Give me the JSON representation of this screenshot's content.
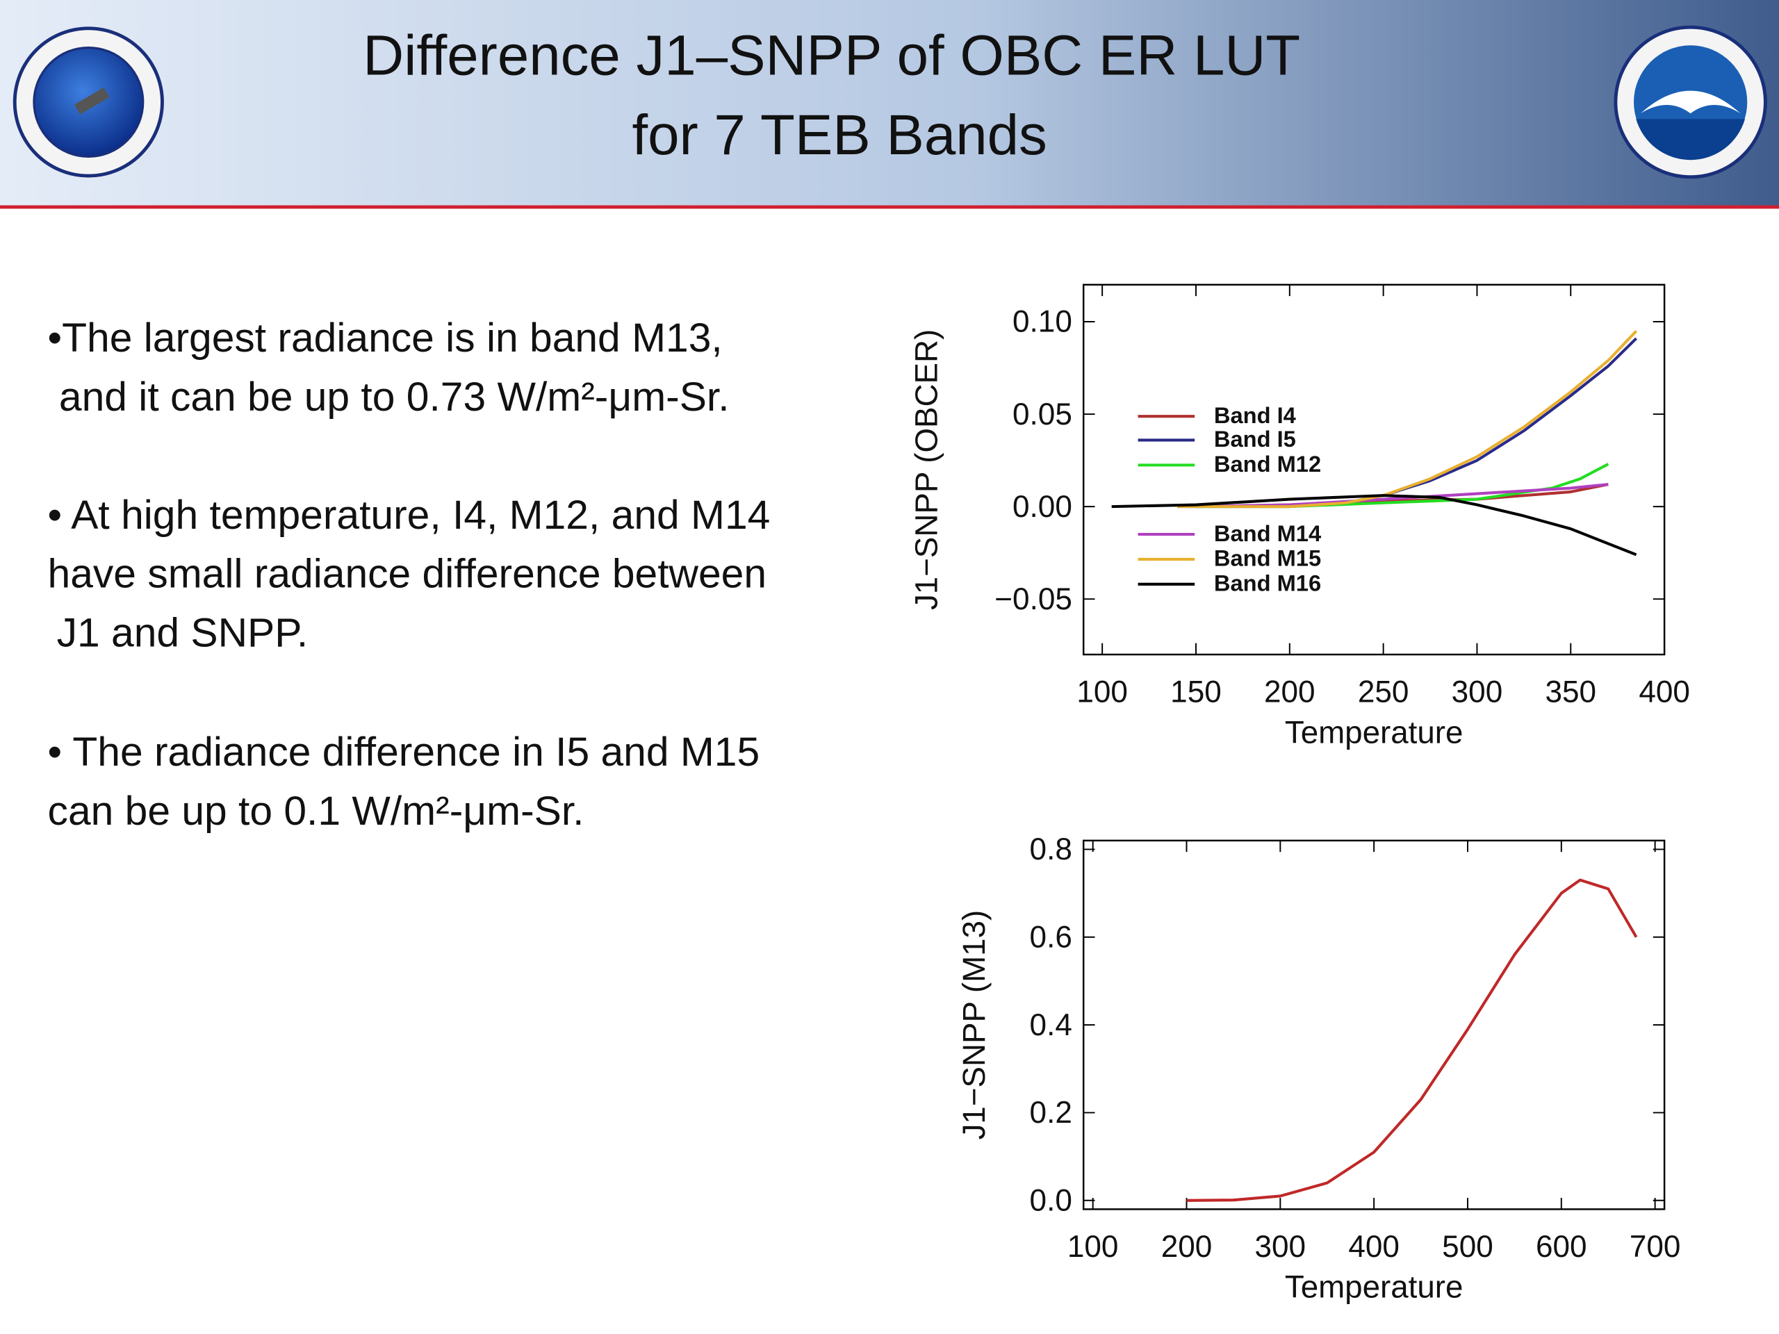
{
  "header": {
    "title_lines": [
      "Difference J1–SNPP of OBC ER LUT",
      "for 7 TEB Bands"
    ]
  },
  "bullets": [
    [
      "•The largest radiance is in band M13,",
      "and it can be up to 0.73 W/m²-μm-Sr."
    ],
    [
      "• At high temperature, I4, M12, and M14",
      "have small radiance difference between",
      "J1 and SNPP."
    ],
    [
      "• The radiance difference in I5 and M15",
      "can be up to 0.1 W/m²-μm-Sr."
    ]
  ],
  "chart_data": [
    {
      "type": "line",
      "x_label": "Temperature",
      "y_label": "J1−SNPP (OBCER)",
      "xlim": [
        90,
        400
      ],
      "ylim": [
        -0.08,
        0.12
      ],
      "xticks": [
        100,
        150,
        200,
        250,
        300,
        350,
        400
      ],
      "yticks": [
        {
          "value": -0.05,
          "label": "−0.05"
        },
        {
          "value": 0,
          "label": "0.00"
        },
        {
          "value": 0.05,
          "label": "0.05"
        },
        {
          "value": 0.1,
          "label": "0.10"
        }
      ],
      "series": [
        {
          "name": "Band I4",
          "color": "#b03030",
          "x": [
            150,
            200,
            250,
            300,
            350,
            370
          ],
          "values": [
            0,
            0.001,
            0.003,
            0.004,
            0.008,
            0.012
          ]
        },
        {
          "name": "Band I5",
          "color": "#2a2a8a",
          "x": [
            140,
            200,
            230,
            250,
            275,
            300,
            325,
            350,
            370,
            385
          ],
          "values": [
            0,
            0,
            0.002,
            0.006,
            0.014,
            0.025,
            0.041,
            0.06,
            0.076,
            0.091
          ]
        },
        {
          "name": "Band M12",
          "color": "#22dd22",
          "x": [
            150,
            200,
            250,
            300,
            340,
            355,
            370
          ],
          "values": [
            0,
            0,
            0.002,
            0.004,
            0.01,
            0.015,
            0.023
          ]
        },
        {
          "name": "Band M14",
          "color": "#b040c0",
          "x": [
            150,
            200,
            250,
            300,
            350,
            370
          ],
          "values": [
            0,
            0.001,
            0.004,
            0.007,
            0.01,
            0.012
          ]
        },
        {
          "name": "Band M15",
          "color": "#e8b030",
          "x": [
            140,
            200,
            230,
            250,
            275,
            300,
            325,
            350,
            370,
            385
          ],
          "values": [
            0,
            0,
            0.002,
            0.006,
            0.015,
            0.027,
            0.043,
            0.062,
            0.079,
            0.095
          ]
        },
        {
          "name": "Band M16",
          "color": "#000000",
          "x": [
            105,
            150,
            200,
            250,
            280,
            300,
            325,
            350,
            385
          ],
          "values": [
            0,
            0.001,
            0.004,
            0.006,
            0.005,
            0.001,
            -0.005,
            -0.012,
            -0.026
          ]
        }
      ]
    },
    {
      "type": "line",
      "x_label": "Temperature",
      "y_label": "J1−SNPP (M13)",
      "xlim": [
        90,
        710
      ],
      "ylim": [
        -0.02,
        0.82
      ],
      "xticks": [
        100,
        200,
        300,
        400,
        500,
        600,
        700
      ],
      "yticks": [
        {
          "value": 0,
          "label": "0.0"
        },
        {
          "value": 0.2,
          "label": "0.2"
        },
        {
          "value": 0.4,
          "label": "0.4"
        },
        {
          "value": 0.6,
          "label": "0.6"
        },
        {
          "value": 0.8,
          "label": "0.8"
        }
      ],
      "series": [
        {
          "color": "#c02828",
          "x": [
            200,
            250,
            300,
            350,
            400,
            450,
            500,
            550,
            600,
            620,
            650,
            680
          ],
          "values": [
            0,
            0.001,
            0.01,
            0.04,
            0.11,
            0.23,
            0.39,
            0.56,
            0.7,
            0.73,
            0.71,
            0.6
          ]
        }
      ]
    }
  ]
}
